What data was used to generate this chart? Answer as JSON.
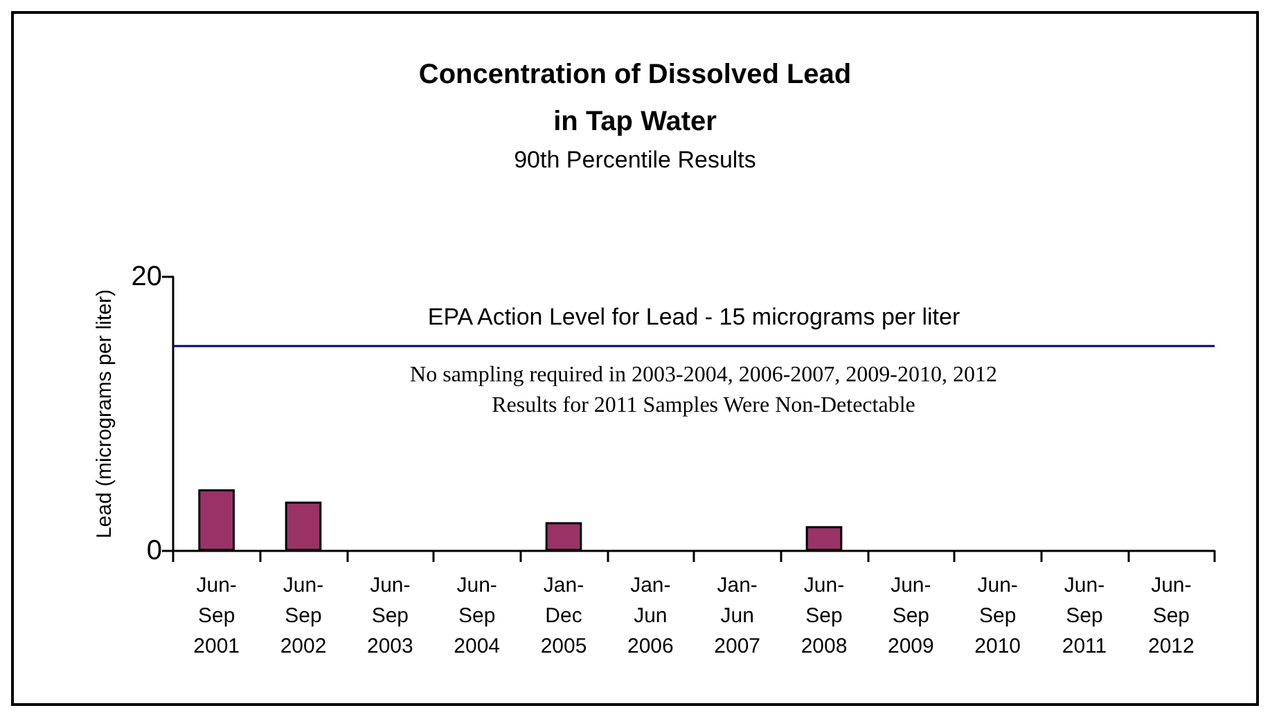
{
  "chart_data": {
    "type": "bar",
    "title": "Concentration of Dissolved Lead\nin Tap Water",
    "subtitle": "90th Percentile Results",
    "ylabel": "Lead (micrograms per liter)",
    "categories": [
      "Jun-\nSep\n2001",
      "Jun-\nSep\n2002",
      "Jun-\nSep\n2003",
      "Jun-\nSep\n2004",
      "Jan-\nDec\n2005",
      "Jan-\nJun\n2006",
      "Jan-\nJun\n2007",
      "Jun-\nSep\n2008",
      "Jun-\nSep\n2009",
      "Jun-\nSep\n2010",
      "Jun-\nSep\n2011",
      "Jun-\nSep\n2012"
    ],
    "values": [
      4.5,
      3.6,
      null,
      null,
      2.1,
      null,
      null,
      1.8,
      null,
      null,
      null,
      null
    ],
    "color": "#993366",
    "ylim": [
      0,
      20
    ],
    "yticks": [
      0,
      20
    ],
    "grid": false,
    "ref_lines": [
      {
        "axis": "y",
        "value": 15,
        "label": "EPA Action Level for Lead - 15 micrograms per liter",
        "color": "#000080"
      }
    ],
    "annotations": [
      "No sampling required in 2003-2004, 2006-2007, 2009-2010, 2012\nResults for 2011 Samples Were Non-Detectable"
    ]
  }
}
